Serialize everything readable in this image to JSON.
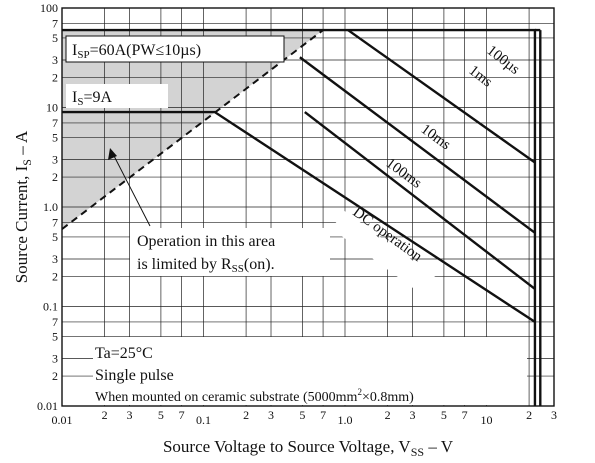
{
  "chart_data": {
    "type": "line",
    "title": "",
    "xlabel": "Source Voltage to Source Voltage, V",
    "xlabel_sub": "SS",
    "xlabel_unit": "V",
    "ylabel": "Source Current, I",
    "ylabel_sub": "S",
    "ylabel_unit": "A",
    "x_scale": "log",
    "y_scale": "log",
    "xlim": [
      0.01,
      30
    ],
    "ylim": [
      0.01,
      100
    ],
    "grid": true,
    "x_major_ticks": [
      {
        "v": 0.01,
        "label": "0.01"
      },
      {
        "v": 0.1,
        "label": "0.1"
      },
      {
        "v": 1,
        "label": "1.0"
      },
      {
        "v": 10,
        "label": "10"
      }
    ],
    "x_minor_ticks": [
      {
        "v": 0.02,
        "label": "2"
      },
      {
        "v": 0.03,
        "label": "3"
      },
      {
        "v": 0.05,
        "label": "5"
      },
      {
        "v": 0.07,
        "label": "7"
      },
      {
        "v": 0.2,
        "label": "2"
      },
      {
        "v": 0.3,
        "label": "3"
      },
      {
        "v": 0.5,
        "label": "5"
      },
      {
        "v": 0.7,
        "label": "7"
      },
      {
        "v": 2,
        "label": "2"
      },
      {
        "v": 3,
        "label": "3"
      },
      {
        "v": 5,
        "label": "5"
      },
      {
        "v": 7,
        "label": "7"
      },
      {
        "v": 20,
        "label": "2"
      },
      {
        "v": 30,
        "label": "3"
      }
    ],
    "y_major_ticks": [
      {
        "v": 0.01,
        "label": "0.01"
      },
      {
        "v": 0.1,
        "label": "0.1"
      },
      {
        "v": 1,
        "label": "1.0"
      },
      {
        "v": 10,
        "label": "10"
      },
      {
        "v": 100,
        "label": "100"
      }
    ],
    "y_minor_ticks": [
      {
        "v": 0.02,
        "label": "2"
      },
      {
        "v": 0.03,
        "label": "3"
      },
      {
        "v": 0.05,
        "label": "5"
      },
      {
        "v": 0.07,
        "label": "7"
      },
      {
        "v": 0.2,
        "label": "2"
      },
      {
        "v": 0.3,
        "label": "3"
      },
      {
        "v": 0.5,
        "label": "5"
      },
      {
        "v": 0.7,
        "label": "7"
      },
      {
        "v": 2,
        "label": "2"
      },
      {
        "v": 3,
        "label": "3"
      },
      {
        "v": 5,
        "label": "5"
      },
      {
        "v": 7,
        "label": "7"
      },
      {
        "v": 20,
        "label": "2"
      },
      {
        "v": 30,
        "label": "3"
      },
      {
        "v": 50,
        "label": "5"
      },
      {
        "v": 70,
        "label": "7"
      }
    ],
    "series": [
      {
        "name": "100µs",
        "x": [
          0.7,
          22,
          22
        ],
        "y": [
          60,
          60,
          0.01
        ]
      },
      {
        "name": "1ms",
        "x": [
          1.05,
          22
        ],
        "y": [
          60,
          2.8
        ]
      },
      {
        "name": "10ms",
        "x": [
          0.48,
          22
        ],
        "y": [
          32,
          0.55
        ]
      },
      {
        "name": "100ms",
        "x": [
          0.52,
          22
        ],
        "y": [
          9,
          0.15
        ]
      },
      {
        "name": "DC operation",
        "x": [
          0.01,
          0.12,
          22
        ],
        "y": [
          9,
          9,
          0.07
        ]
      }
    ],
    "rss_limit_line": {
      "x": [
        0.01,
        0.7
      ],
      "y": [
        0.6,
        60
      ]
    },
    "annotations": {
      "isp": "I",
      "isp_sub": "SP",
      "isp_rest": "=60A(PW≤10µs)",
      "is": "I",
      "is_sub": "S",
      "is_rest": "=9A",
      "op_area_line1": "Operation in this area",
      "op_area_line2_a": "is limited by R",
      "op_area_line2_sub": "SS",
      "op_area_line2_b": "(on).",
      "ta": "Ta=25°C",
      "pulse": "Single pulse",
      "mount_a": "When mounted on ceramic substrate (5000mm",
      "mount_sup": "2",
      "mount_b": "×0.8mm)"
    },
    "colors": {
      "line": "#111111",
      "grid": "#222222",
      "shade": "#d3d3d3"
    }
  }
}
